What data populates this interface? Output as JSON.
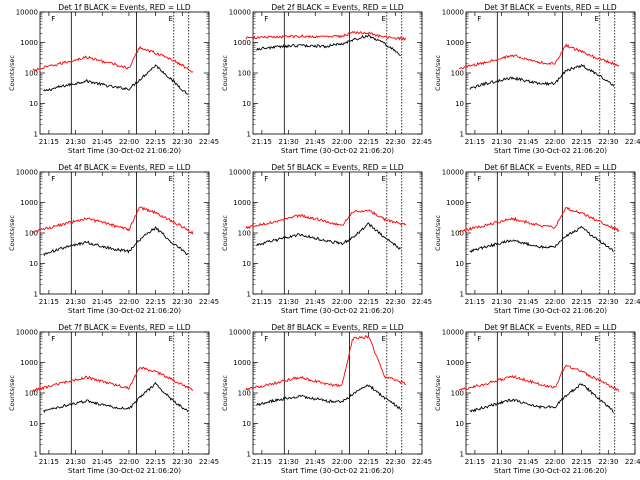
{
  "figure": {
    "xlabel": "Start Time (30-Oct-02 21:06:20)",
    "ylabel": "Counts/sec",
    "colors": {
      "black_series": "#000000",
      "red_series": "#ff0000",
      "axes": "#000000"
    }
  },
  "chart_data": [
    {
      "type": "line",
      "title": "Det 1f BLACK = Events, RED = LLD",
      "xlabel": "Start Time (30-Oct-02 21:06:20)",
      "ylabel": "Counts/sec",
      "yscale": "log",
      "ylim": [
        1,
        10000
      ],
      "xlim": [
        "21:10",
        "22:45"
      ],
      "x_tick_labels": [
        "21:15",
        "21:30",
        "21:45",
        "22:00",
        "22:15",
        "22:30",
        "22:45"
      ],
      "y_tick_labels": [
        "1",
        "10",
        "100",
        "1000",
        "10000"
      ],
      "marker_labels": [
        "F",
        "E"
      ],
      "series": [
        {
          "color": "#000000",
          "values": [
            [
              21.2,
              25
            ],
            [
              21.35,
              35
            ],
            [
              21.6,
              55
            ],
            [
              21.85,
              35
            ],
            [
              22.0,
              30
            ],
            [
              22.1,
              60
            ],
            [
              22.25,
              180
            ],
            [
              22.4,
              60
            ],
            [
              22.55,
              20
            ]
          ]
        },
        {
          "color": "#ff0000",
          "values": [
            [
              21.1,
              120
            ],
            [
              21.35,
              200
            ],
            [
              21.6,
              330
            ],
            [
              21.85,
              200
            ],
            [
              22.0,
              140
            ],
            [
              22.1,
              700
            ],
            [
              22.25,
              450
            ],
            [
              22.4,
              280
            ],
            [
              22.6,
              110
            ]
          ]
        }
      ]
    },
    {
      "type": "line",
      "title": "Det 2f BLACK = Events, RED = LLD",
      "xlabel": "Start Time (30-Oct-02 21:06:20)",
      "ylabel": "Counts/sec",
      "yscale": "log",
      "ylim": [
        1,
        10000
      ],
      "xlim": [
        "21:10",
        "22:45"
      ],
      "x_tick_labels": [
        "21:15",
        "21:30",
        "21:45",
        "22:00",
        "22:15",
        "22:30",
        "22:45"
      ],
      "y_tick_labels": [
        "1",
        "10",
        "100",
        "1000",
        "10000"
      ],
      "marker_labels": [
        "F",
        "E"
      ],
      "series": [
        {
          "color": "#000000",
          "values": [
            [
              21.2,
              600
            ],
            [
              21.35,
              700
            ],
            [
              21.6,
              800
            ],
            [
              21.85,
              750
            ],
            [
              22.0,
              900
            ],
            [
              22.1,
              1200
            ],
            [
              22.25,
              1700
            ],
            [
              22.4,
              900
            ],
            [
              22.55,
              400
            ]
          ]
        },
        {
          "color": "#ff0000",
          "values": [
            [
              21.1,
              1400
            ],
            [
              21.35,
              1500
            ],
            [
              21.6,
              1600
            ],
            [
              21.85,
              1550
            ],
            [
              22.0,
              1600
            ],
            [
              22.1,
              2200
            ],
            [
              22.25,
              2000
            ],
            [
              22.4,
              1500
            ],
            [
              22.6,
              1300
            ]
          ]
        }
      ]
    },
    {
      "type": "line",
      "title": "Det 3f BLACK = Events, RED = LLD",
      "xlabel": "Start Time (30-Oct-02 21:06:20)",
      "ylabel": "Counts/sec",
      "yscale": "log",
      "ylim": [
        1,
        10000
      ],
      "xlim": [
        "21:10",
        "22:45"
      ],
      "x_tick_labels": [
        "21:15",
        "21:30",
        "21:45",
        "22:00",
        "22:15",
        "22:30",
        "22:45"
      ],
      "y_tick_labels": [
        "1",
        "10",
        "100",
        "1000",
        "10000"
      ],
      "marker_labels": [
        "F",
        "E"
      ],
      "series": [
        {
          "color": "#000000",
          "values": [
            [
              21.2,
              30
            ],
            [
              21.35,
              45
            ],
            [
              21.6,
              70
            ],
            [
              21.85,
              45
            ],
            [
              22.0,
              45
            ],
            [
              22.1,
              120
            ],
            [
              22.25,
              180
            ],
            [
              22.4,
              90
            ],
            [
              22.55,
              40
            ]
          ]
        },
        {
          "color": "#ff0000",
          "values": [
            [
              21.1,
              140
            ],
            [
              21.35,
              220
            ],
            [
              21.6,
              380
            ],
            [
              21.85,
              220
            ],
            [
              22.0,
              200
            ],
            [
              22.1,
              800
            ],
            [
              22.25,
              500
            ],
            [
              22.4,
              300
            ],
            [
              22.6,
              180
            ]
          ]
        }
      ]
    },
    {
      "type": "line",
      "title": "Det 4f BLACK = Events, RED = LLD",
      "xlabel": "Start Time (30-Oct-02 21:06:20)",
      "ylabel": "Counts/sec",
      "yscale": "log",
      "ylim": [
        1,
        10000
      ],
      "xlim": [
        "21:10",
        "22:45"
      ],
      "x_tick_labels": [
        "21:15",
        "21:30",
        "21:45",
        "22:00",
        "22:15",
        "22:30",
        "22:45"
      ],
      "y_tick_labels": [
        "1",
        "10",
        "100",
        "1000",
        "10000"
      ],
      "marker_labels": [
        "F",
        "E"
      ],
      "series": [
        {
          "color": "#000000",
          "values": [
            [
              21.2,
              20
            ],
            [
              21.35,
              30
            ],
            [
              21.6,
              50
            ],
            [
              21.85,
              30
            ],
            [
              22.0,
              25
            ],
            [
              22.1,
              60
            ],
            [
              22.25,
              150
            ],
            [
              22.4,
              50
            ],
            [
              22.55,
              20
            ]
          ]
        },
        {
          "color": "#ff0000",
          "values": [
            [
              21.1,
              110
            ],
            [
              21.35,
              180
            ],
            [
              21.6,
              300
            ],
            [
              21.85,
              180
            ],
            [
              22.0,
              130
            ],
            [
              22.1,
              700
            ],
            [
              22.25,
              450
            ],
            [
              22.4,
              250
            ],
            [
              22.6,
              100
            ]
          ]
        }
      ]
    },
    {
      "type": "line",
      "title": "Det 5f BLACK = Events, RED = LLD",
      "xlabel": "Start Time (30-Oct-02 21:06:20)",
      "ylabel": "Counts/sec",
      "yscale": "log",
      "ylim": [
        1,
        10000
      ],
      "xlim": [
        "21:10",
        "22:45"
      ],
      "x_tick_labels": [
        "21:15",
        "21:30",
        "21:45",
        "22:00",
        "22:15",
        "22:30",
        "22:45"
      ],
      "y_tick_labels": [
        "1",
        "10",
        "100",
        "1000",
        "10000"
      ],
      "marker_labels": [
        "F",
        "E"
      ],
      "series": [
        {
          "color": "#000000",
          "values": [
            [
              21.2,
              40
            ],
            [
              21.35,
              55
            ],
            [
              21.6,
              90
            ],
            [
              21.85,
              55
            ],
            [
              22.0,
              45
            ],
            [
              22.1,
              70
            ],
            [
              22.25,
              200
            ],
            [
              22.4,
              70
            ],
            [
              22.55,
              30
            ]
          ]
        },
        {
          "color": "#ff0000",
          "values": [
            [
              21.1,
              150
            ],
            [
              21.35,
              230
            ],
            [
              21.6,
              380
            ],
            [
              21.85,
              240
            ],
            [
              22.0,
              170
            ],
            [
              22.1,
              500
            ],
            [
              22.25,
              550
            ],
            [
              22.4,
              280
            ],
            [
              22.6,
              180
            ]
          ]
        }
      ]
    },
    {
      "type": "line",
      "title": "Det 6f BLACK = Events, RED = LLD",
      "xlabel": "Start Time (30-Oct-02 21:06:20)",
      "ylabel": "Counts/sec",
      "yscale": "log",
      "ylim": [
        1,
        10000
      ],
      "xlim": [
        "21:10",
        "22:45"
      ],
      "x_tick_labels": [
        "21:15",
        "21:30",
        "21:45",
        "22:00",
        "22:15",
        "22:30",
        "22:45"
      ],
      "y_tick_labels": [
        "1",
        "10",
        "100",
        "1000",
        "10000"
      ],
      "marker_labels": [
        "F",
        "E"
      ],
      "series": [
        {
          "color": "#000000",
          "values": [
            [
              21.2,
              25
            ],
            [
              21.35,
              35
            ],
            [
              21.6,
              60
            ],
            [
              21.85,
              35
            ],
            [
              22.0,
              35
            ],
            [
              22.1,
              80
            ],
            [
              22.25,
              150
            ],
            [
              22.4,
              60
            ],
            [
              22.55,
              25
            ]
          ]
        },
        {
          "color": "#ff0000",
          "values": [
            [
              21.1,
              110
            ],
            [
              21.35,
              180
            ],
            [
              21.6,
              300
            ],
            [
              21.85,
              180
            ],
            [
              22.0,
              150
            ],
            [
              22.1,
              650
            ],
            [
              22.25,
              450
            ],
            [
              22.4,
              250
            ],
            [
              22.6,
              120
            ]
          ]
        }
      ]
    },
    {
      "type": "line",
      "title": "Det 7f BLACK = Events, RED = LLD",
      "xlabel": "Start Time (30-Oct-02 21:06:20)",
      "ylabel": "Counts/sec",
      "yscale": "log",
      "ylim": [
        1,
        10000
      ],
      "xlim": [
        "21:10",
        "22:45"
      ],
      "x_tick_labels": [
        "21:15",
        "21:30",
        "21:45",
        "22:00",
        "22:15",
        "22:30",
        "22:45"
      ],
      "y_tick_labels": [
        "1",
        "10",
        "100",
        "1000",
        "10000"
      ],
      "marker_labels": [
        "F",
        "E"
      ],
      "series": [
        {
          "color": "#000000",
          "values": [
            [
              21.2,
              25
            ],
            [
              21.35,
              35
            ],
            [
              21.6,
              55
            ],
            [
              21.85,
              35
            ],
            [
              22.0,
              30
            ],
            [
              22.1,
              70
            ],
            [
              22.25,
              200
            ],
            [
              22.4,
              60
            ],
            [
              22.55,
              25
            ]
          ]
        },
        {
          "color": "#ff0000",
          "values": [
            [
              21.1,
              120
            ],
            [
              21.35,
              200
            ],
            [
              21.6,
              330
            ],
            [
              21.85,
              200
            ],
            [
              22.0,
              140
            ],
            [
              22.1,
              700
            ],
            [
              22.25,
              500
            ],
            [
              22.4,
              280
            ],
            [
              22.6,
              120
            ]
          ]
        }
      ]
    },
    {
      "type": "line",
      "title": "Det 8f BLACK = Events, RED = LLD",
      "xlabel": "Start Time (30-Oct-02 21:06:20)",
      "ylabel": "Counts/sec",
      "yscale": "log",
      "ylim": [
        1,
        10000
      ],
      "xlim": [
        "21:10",
        "22:45"
      ],
      "x_tick_labels": [
        "21:15",
        "21:30",
        "21:45",
        "22:00",
        "22:15",
        "22:30",
        "22:45"
      ],
      "y_tick_labels": [
        "1",
        "10",
        "100",
        "1000",
        "10000"
      ],
      "marker_labels": [
        "F",
        "E"
      ],
      "series": [
        {
          "color": "#000000",
          "values": [
            [
              21.2,
              40
            ],
            [
              21.35,
              55
            ],
            [
              21.6,
              80
            ],
            [
              21.85,
              55
            ],
            [
              22.0,
              50
            ],
            [
              22.1,
              90
            ],
            [
              22.25,
              180
            ],
            [
              22.4,
              70
            ],
            [
              22.55,
              30
            ]
          ]
        },
        {
          "color": "#ff0000",
          "values": [
            [
              21.1,
              130
            ],
            [
              21.35,
              200
            ],
            [
              21.6,
              330
            ],
            [
              21.85,
              200
            ],
            [
              22.0,
              170
            ],
            [
              22.1,
              6000
            ],
            [
              22.25,
              7000
            ],
            [
              22.4,
              350
            ],
            [
              22.6,
              200
            ]
          ]
        }
      ]
    },
    {
      "type": "line",
      "title": "Det 9f BLACK = Events, RED = LLD",
      "xlabel": "Start Time (30-Oct-02 21:06:20)",
      "ylabel": "Counts/sec",
      "yscale": "log",
      "ylim": [
        1,
        10000
      ],
      "xlim": [
        "21:10",
        "22:45"
      ],
      "x_tick_labels": [
        "21:15",
        "21:30",
        "21:45",
        "22:00",
        "22:15",
        "22:30",
        "22:45"
      ],
      "y_tick_labels": [
        "1",
        "10",
        "100",
        "1000",
        "10000"
      ],
      "marker_labels": [
        "F",
        "E"
      ],
      "series": [
        {
          "color": "#000000",
          "values": [
            [
              21.2,
              25
            ],
            [
              21.35,
              35
            ],
            [
              21.6,
              60
            ],
            [
              21.85,
              35
            ],
            [
              22.0,
              35
            ],
            [
              22.1,
              80
            ],
            [
              22.25,
              200
            ],
            [
              22.4,
              70
            ],
            [
              22.55,
              25
            ]
          ]
        },
        {
          "color": "#ff0000",
          "values": [
            [
              21.1,
              120
            ],
            [
              21.35,
              200
            ],
            [
              21.6,
              350
            ],
            [
              21.85,
              200
            ],
            [
              22.0,
              150
            ],
            [
              22.1,
              800
            ],
            [
              22.25,
              500
            ],
            [
              22.4,
              280
            ],
            [
              22.6,
              120
            ]
          ]
        }
      ]
    }
  ]
}
